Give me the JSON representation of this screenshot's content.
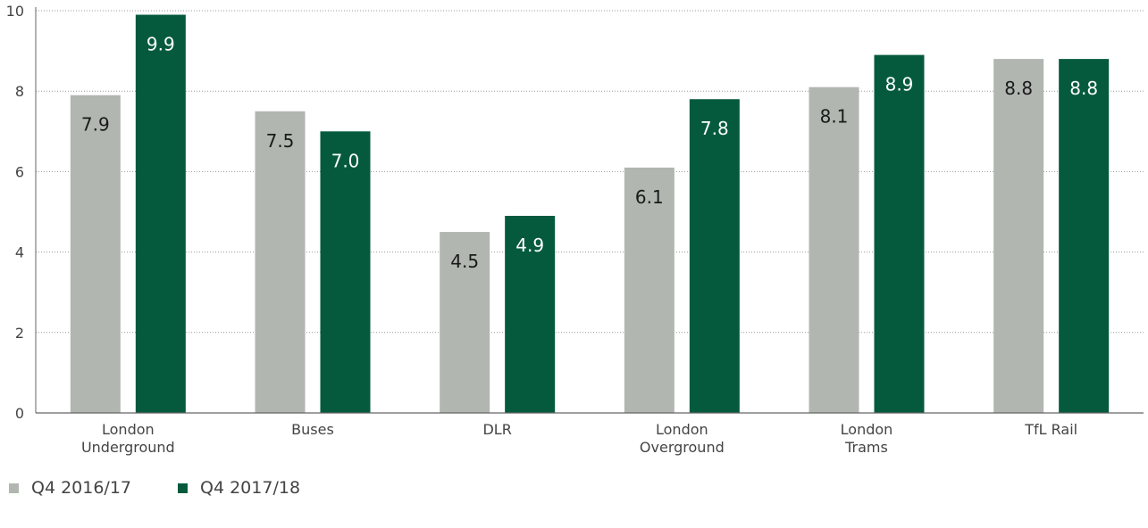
{
  "chart_data": {
    "type": "bar",
    "title": "",
    "xlabel": "",
    "ylabel": "",
    "categories": [
      "London\nUnderground",
      "Buses",
      "DLR",
      "London\nOverground",
      "London\nTrams",
      "TfL Rail"
    ],
    "series": [
      {
        "name": "Q4 2016/17",
        "color": "#b1b6b1",
        "label_color": "#1a1a1a",
        "values": [
          7.9,
          7.5,
          4.5,
          6.1,
          8.1,
          8.8
        ],
        "labels": [
          "7.9",
          "7.5",
          "4.5",
          "6.1",
          "8.1",
          "8.8"
        ]
      },
      {
        "name": "Q4 2017/18",
        "color": "#055a3e",
        "label_color": "#ffffff",
        "values": [
          9.9,
          7.0,
          4.9,
          7.8,
          8.9,
          8.8
        ],
        "labels": [
          "9.9",
          "7.0",
          "4.9",
          "7.8",
          "8.9",
          "8.8"
        ]
      }
    ],
    "ylim": [
      0,
      10
    ],
    "yticks": [
      0,
      2,
      4,
      6,
      8,
      10
    ],
    "ytick_labels": [
      "0",
      "2",
      "4",
      "6",
      "8",
      "10"
    ],
    "grid": true,
    "legend": "bottom-left"
  }
}
